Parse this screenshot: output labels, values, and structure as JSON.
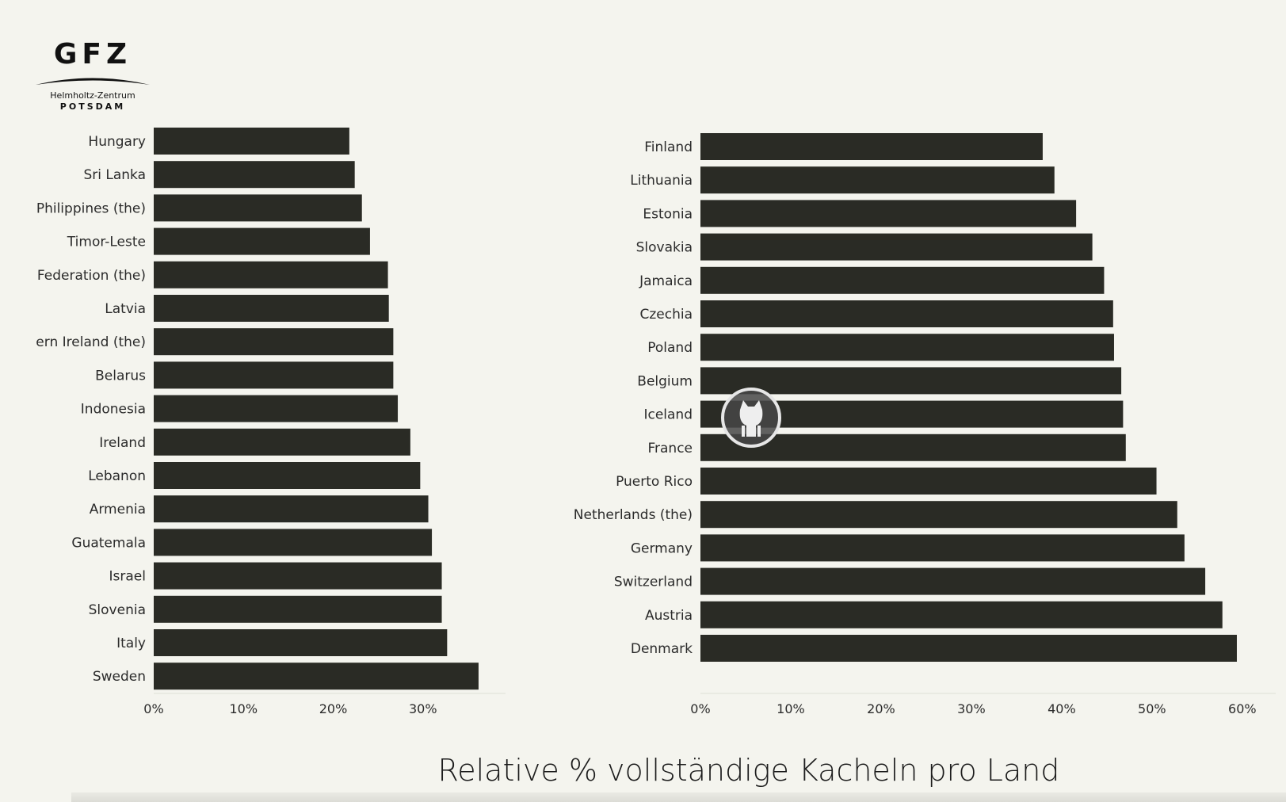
{
  "logo": {
    "main": "GFZ",
    "sub1": "Helmholtz-Zentrum",
    "sub2": "POTSDAM"
  },
  "title": "Relative % vollständige Kacheln pro Land",
  "colors": {
    "bar": "#2a2b25",
    "background": "#f4f4ee"
  },
  "chart_data": [
    {
      "type": "bar",
      "orientation": "horizontal",
      "categories": [
        "Hungary",
        "Sri Lanka",
        "Philippines (the)",
        "Timor-Leste",
        "Russian Federation (the)",
        "Latvia",
        "United Kingdom of Great Britain and Northern Ireland (the)",
        "Belarus",
        "Indonesia",
        "Ireland",
        "Lebanon",
        "Armenia",
        "Guatemala",
        "Israel",
        "Slovenia",
        "Italy",
        "Sweden"
      ],
      "values": [
        21.8,
        22.4,
        23.2,
        24.1,
        26.1,
        26.2,
        26.7,
        26.7,
        27.2,
        28.6,
        29.7,
        30.6,
        31.0,
        32.1,
        32.1,
        32.7,
        36.2
      ],
      "xticks": [
        "0%",
        "10%",
        "20%",
        "30%"
      ],
      "xlim": [
        0,
        38.5
      ]
    },
    {
      "type": "bar",
      "orientation": "horizontal",
      "categories": [
        "Finland",
        "Lithuania",
        "Estonia",
        "Slovakia",
        "Jamaica",
        "Czechia",
        "Poland",
        "Belgium",
        "Iceland",
        "France",
        "Puerto Rico",
        "Netherlands (the)",
        "Germany",
        "Switzerland",
        "Austria",
        "Denmark"
      ],
      "values": [
        37.9,
        39.2,
        41.6,
        43.4,
        44.7,
        45.7,
        45.8,
        46.6,
        46.8,
        47.1,
        50.5,
        52.8,
        53.6,
        55.9,
        57.8,
        59.4
      ],
      "xticks": [
        "0%",
        "10%",
        "20%",
        "30%",
        "40%",
        "50%",
        "60%"
      ],
      "xlim": [
        0,
        63
      ]
    }
  ]
}
